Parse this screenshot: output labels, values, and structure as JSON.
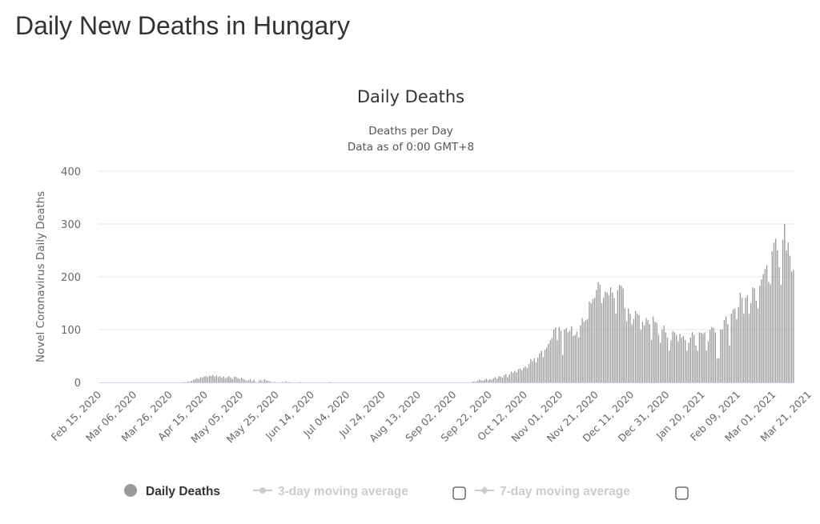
{
  "page": {
    "title": "Daily New Deaths in Hungary"
  },
  "legend": {
    "items": [
      {
        "label": "Daily Deaths",
        "active": true,
        "color": "#999999",
        "text_color": "#333333",
        "icon": "circle-icon"
      },
      {
        "label": "3-day moving average",
        "active": false,
        "color": "#cccccc",
        "icon": "line-marker-icon"
      },
      {
        "label": "7-day moving average",
        "active": false,
        "color": "#cccccc",
        "icon": "line-marker-icon"
      }
    ]
  },
  "chart_data": {
    "type": "bar",
    "title": "Daily Deaths",
    "subtitle": [
      "Deaths per Day",
      "Data as of 0:00 GMT+8"
    ],
    "xlabel": "",
    "ylabel": "Novel Coronavirus Daily Deaths",
    "ylim": [
      0,
      400
    ],
    "yticks": [
      0,
      100,
      200,
      300,
      400
    ],
    "grid": true,
    "legend_position": "bottom",
    "bar_color": "#999999",
    "start_date": "2020-02-15",
    "x_tick_step_days": 20,
    "xtick_labels": [
      "Feb 15, 2020",
      "Mar 06, 2020",
      "Mar 26, 2020",
      "Apr 15, 2020",
      "May 05, 2020",
      "May 25, 2020",
      "Jun 14, 2020",
      "Jul 04, 2020",
      "Jul 24, 2020",
      "Aug 13, 2020",
      "Sep 02, 2020",
      "Sep 22, 2020",
      "Oct 12, 2020",
      "Nov 01, 2020",
      "Nov 21, 2020",
      "Dec 11, 2020",
      "Dec 31, 2020",
      "Jan 20, 2021",
      "Feb 09, 2021",
      "Mar 01, 2021",
      "Mar 21, 2021"
    ],
    "values": [
      0,
      0,
      0,
      0,
      0,
      0,
      0,
      0,
      0,
      0,
      0,
      0,
      0,
      0,
      0,
      0,
      0,
      0,
      0,
      0,
      0,
      0,
      0,
      0,
      0,
      0,
      0,
      0,
      0,
      0,
      0,
      0,
      0,
      0,
      0,
      0,
      0,
      0,
      0,
      0,
      0,
      0,
      0,
      0,
      0,
      0,
      0,
      0,
      1,
      0,
      2,
      1,
      3,
      5,
      6,
      8,
      7,
      10,
      9,
      11,
      12,
      10,
      13,
      12,
      14,
      11,
      13,
      10,
      12,
      9,
      11,
      8,
      10,
      12,
      9,
      7,
      11,
      10,
      8,
      6,
      9,
      7,
      5,
      3,
      4,
      6,
      2,
      5,
      1,
      0,
      3,
      5,
      2,
      6,
      4,
      3,
      2,
      1,
      0,
      1,
      0,
      0,
      0,
      1,
      0,
      2,
      0,
      1,
      0,
      0,
      0,
      0,
      0,
      1,
      0,
      0,
      0,
      0,
      0,
      0,
      0,
      0,
      0,
      0,
      0,
      0,
      0,
      0,
      0,
      0,
      1,
      0,
      0,
      0,
      0,
      0,
      0,
      0,
      0,
      0,
      0,
      0,
      0,
      0,
      0,
      0,
      0,
      0,
      0,
      0,
      0,
      0,
      0,
      0,
      0,
      0,
      0,
      0,
      0,
      0,
      0,
      0,
      0,
      0,
      0,
      0,
      0,
      0,
      0,
      0,
      0,
      0,
      0,
      0,
      0,
      0,
      0,
      0,
      0,
      0,
      0,
      0,
      0,
      0,
      0,
      0,
      0,
      0,
      0,
      0,
      0,
      0,
      0,
      0,
      0,
      0,
      0,
      0,
      0,
      0,
      0,
      0,
      0,
      0,
      0,
      0,
      0,
      0,
      0,
      0,
      1,
      2,
      1,
      3,
      5,
      4,
      3,
      5,
      7,
      4,
      6,
      5,
      8,
      10,
      7,
      12,
      11,
      9,
      14,
      16,
      10,
      15,
      20,
      18,
      22,
      19,
      25,
      26,
      23,
      28,
      30,
      27,
      35,
      44,
      40,
      46,
      38,
      47,
      55,
      60,
      48,
      62,
      66,
      73,
      80,
      84,
      100,
      104,
      80,
      105,
      98,
      52,
      100,
      103,
      95,
      98,
      106,
      88,
      90,
      96,
      85,
      108,
      122,
      115,
      118,
      120,
      153,
      150,
      158,
      160,
      175,
      190,
      185,
      150,
      160,
      172,
      170,
      165,
      180,
      170,
      160,
      130,
      175,
      185,
      183,
      178,
      140,
      115,
      140,
      130,
      110,
      120,
      135,
      130,
      128,
      100,
      115,
      108,
      122,
      118,
      110,
      80,
      125,
      115,
      113,
      90,
      75,
      100,
      108,
      95,
      85,
      60,
      80,
      97,
      95,
      90,
      78,
      92,
      85,
      88,
      80,
      60,
      75,
      85,
      95,
      90,
      70,
      60,
      95,
      94,
      92,
      95,
      60,
      78,
      100,
      105,
      103,
      95,
      45,
      46,
      100,
      100,
      118,
      125,
      110,
      70,
      130,
      138,
      140,
      120,
      143,
      170,
      160,
      130,
      160,
      165,
      130,
      150,
      180,
      178,
      155,
      140,
      183,
      195,
      205,
      215,
      222,
      190,
      186,
      248,
      265,
      272,
      250,
      218,
      185,
      270,
      300,
      250,
      265,
      240,
      210,
      213
    ]
  }
}
